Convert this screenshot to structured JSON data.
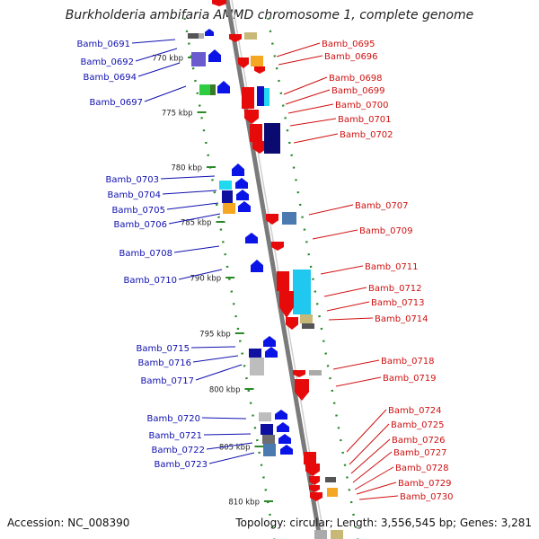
{
  "title": "Burkholderia ambifaria AMMD chromosome 1, complete genome",
  "footer": {
    "accession": "Accession: NC_008390",
    "topology": "Topology: circular; Length: 3,556,545 bp; Genes: 3,281"
  },
  "ticks": [
    {
      "kbp": 770,
      "label": "770 kbp"
    },
    {
      "kbp": 775,
      "label": "775 kbp"
    },
    {
      "kbp": 780,
      "label": "780 kbp"
    },
    {
      "kbp": 785,
      "label": "785 kbp"
    },
    {
      "kbp": 790,
      "label": "790 kbp"
    },
    {
      "kbp": 795,
      "label": "795 kbp"
    },
    {
      "kbp": 800,
      "label": "800 kbp"
    },
    {
      "kbp": 805,
      "label": "805 kbp"
    },
    {
      "kbp": 810,
      "label": "810 kbp"
    }
  ],
  "genes": {
    "minus_strand": [
      "Bamb_0691",
      "Bamb_0692",
      "Bamb_0694",
      "Bamb_0697",
      "Bamb_0703",
      "Bamb_0704",
      "Bamb_0705",
      "Bamb_0706",
      "Bamb_0708",
      "Bamb_0710",
      "Bamb_0715",
      "Bamb_0716",
      "Bamb_0717",
      "Bamb_0720",
      "Bamb_0721",
      "Bamb_0722",
      "Bamb_0723"
    ],
    "plus_strand": [
      "Bamb_0695",
      "Bamb_0696",
      "Bamb_0698",
      "Bamb_0699",
      "Bamb_0700",
      "Bamb_0701",
      "Bamb_0702",
      "Bamb_0707",
      "Bamb_0709",
      "Bamb_0711",
      "Bamb_0712",
      "Bamb_0713",
      "Bamb_0714",
      "Bamb_0718",
      "Bamb_0719",
      "Bamb_0724",
      "Bamb_0725",
      "Bamb_0726",
      "Bamb_0727",
      "Bamb_0728",
      "Bamb_0729",
      "Bamb_0730"
    ]
  },
  "colors": {
    "minus_label": "#1010b0",
    "plus_label": "#d01010",
    "backbone": "#9a9a9a",
    "dots": "#2a8a2a",
    "minus_gene": "#0a14e6",
    "plus_gene": "#e60a0a"
  }
}
